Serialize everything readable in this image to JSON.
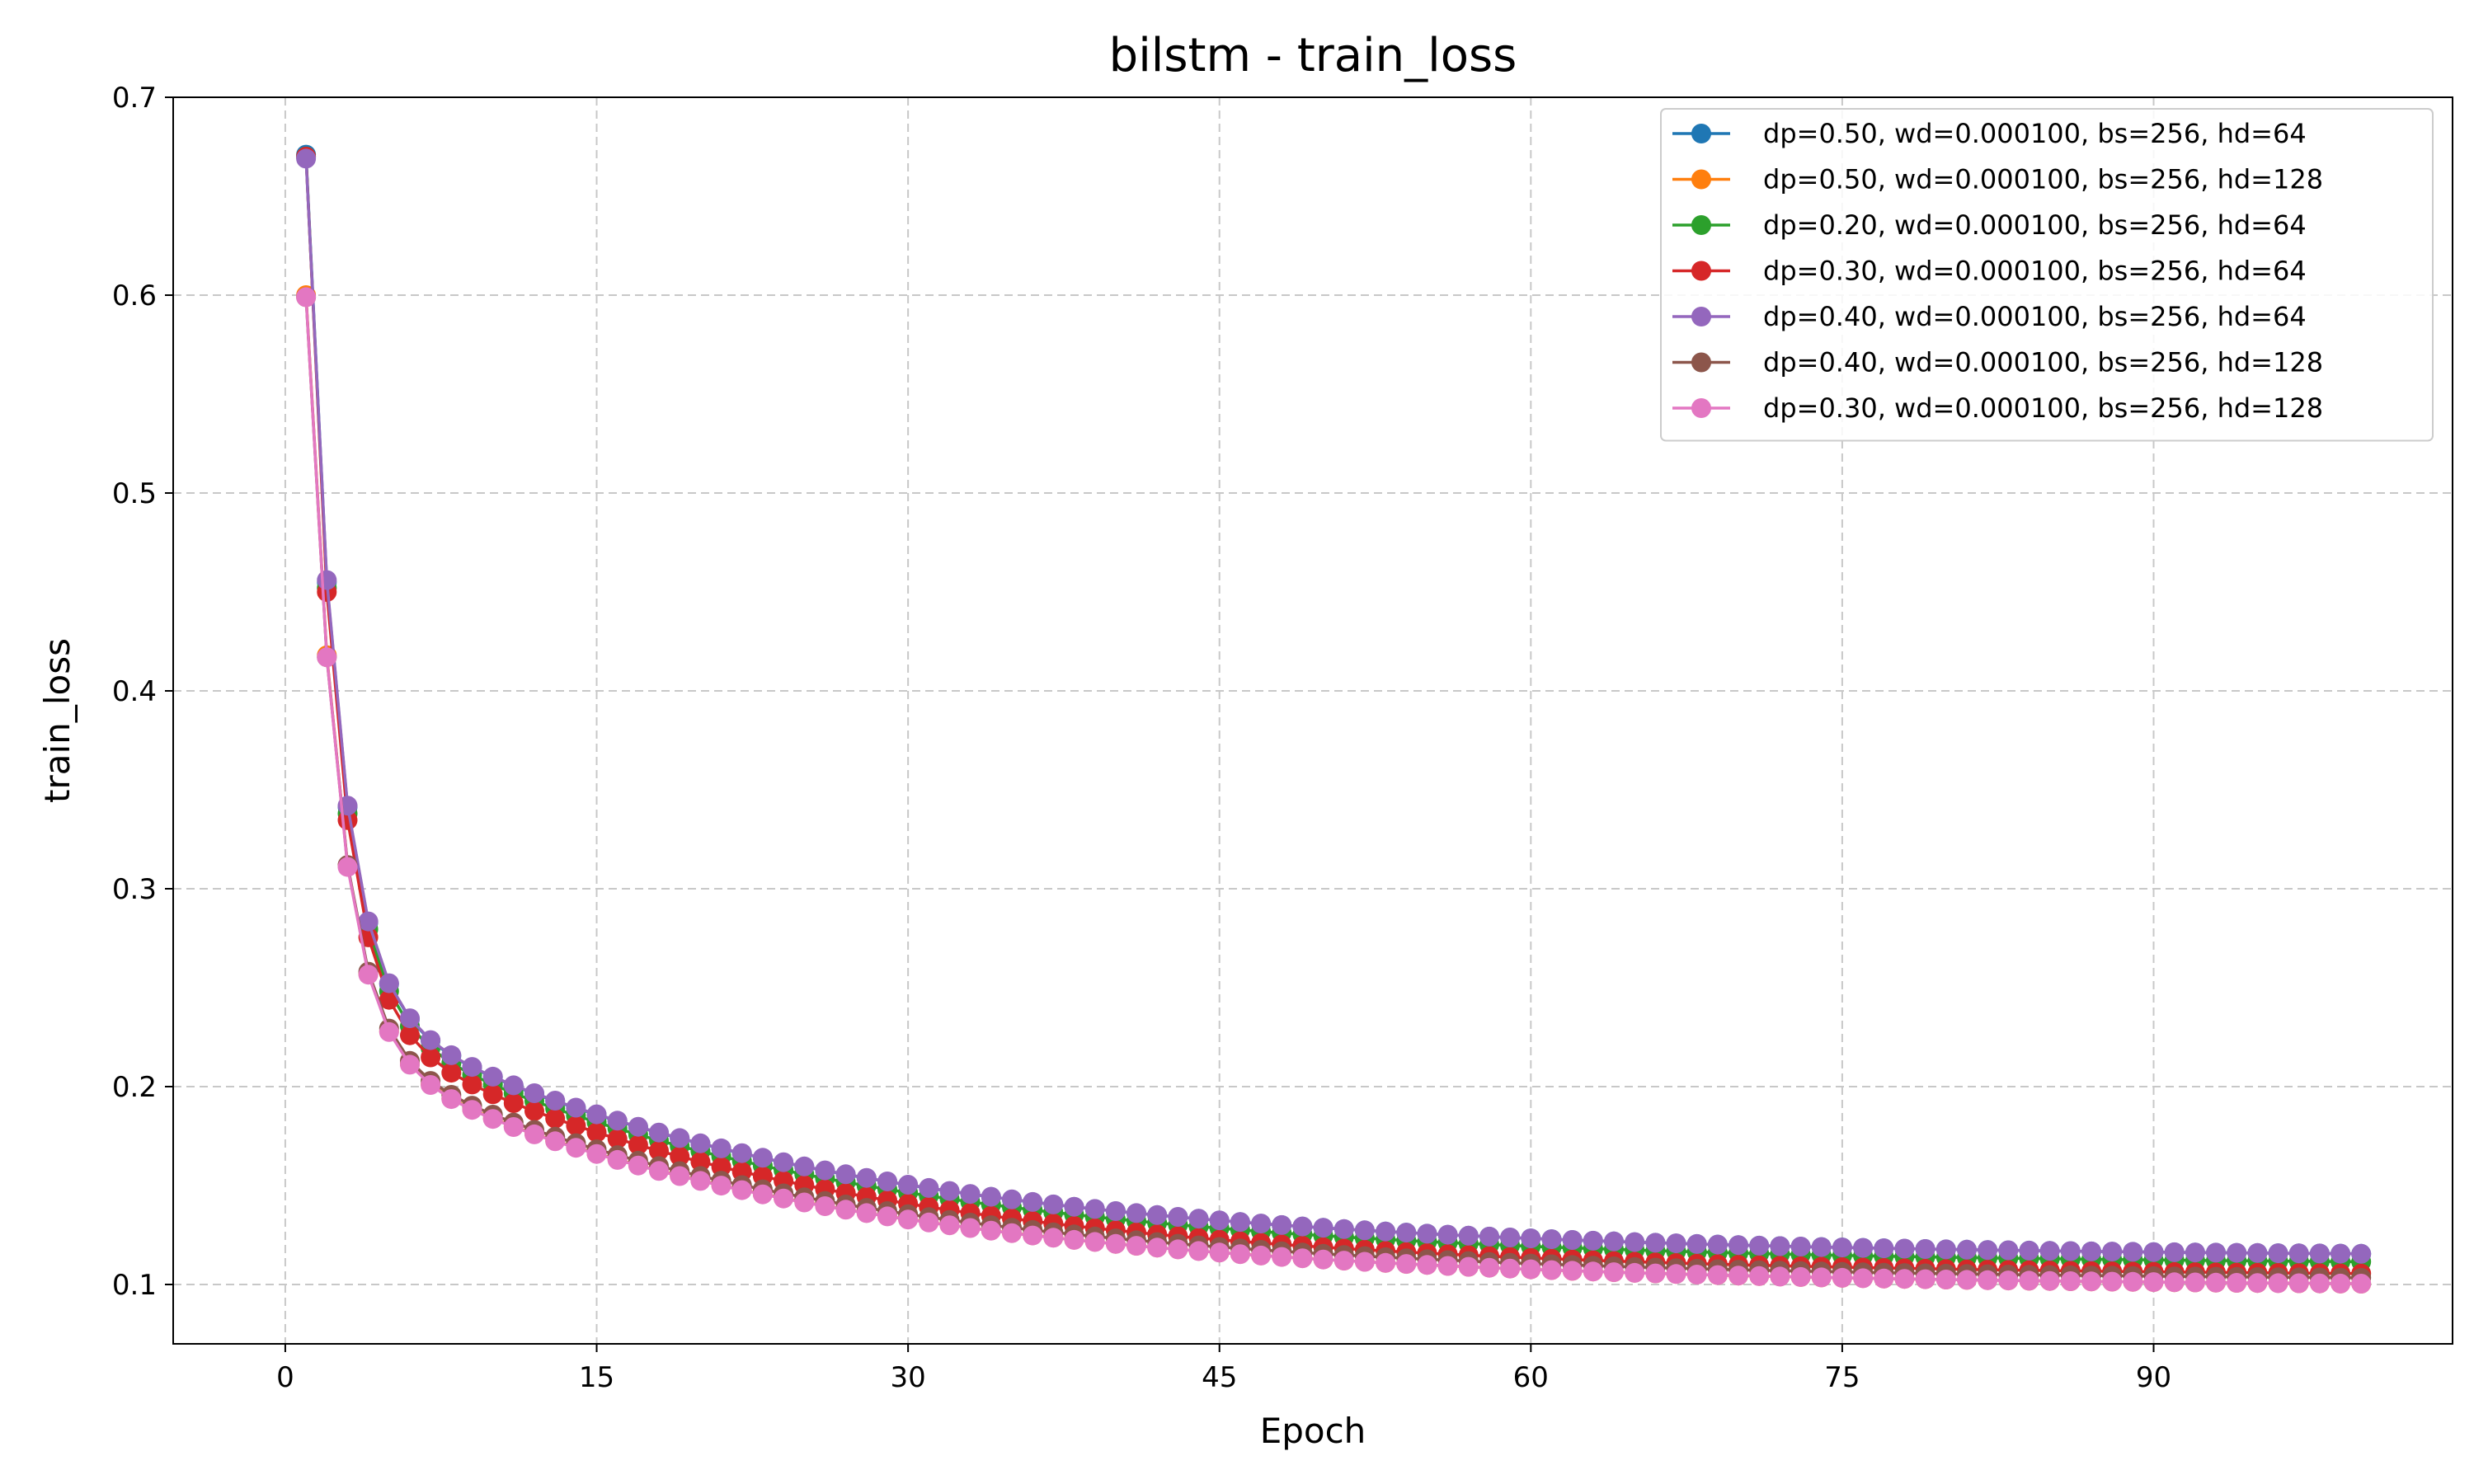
{
  "chart_data": {
    "type": "line",
    "title": "bilstm - train_loss",
    "xlabel": "Epoch",
    "ylabel": "train_loss",
    "xlim": [
      -5.4,
      104.4
    ],
    "ylim": [
      0.07,
      0.7
    ],
    "xticks": [
      0,
      15,
      30,
      45,
      60,
      75,
      90
    ],
    "yticks": [
      0.1,
      0.2,
      0.3,
      0.4,
      0.5,
      0.6,
      0.7
    ],
    "grid": true,
    "legend_position": "top-right",
    "series": [
      {
        "name": "dp=0.50, wd=0.000100, bs=256, hd=64",
        "color": "#1f77b4",
        "start": 0.671,
        "second": 0.455,
        "final": 0.114
      },
      {
        "name": "dp=0.50, wd=0.000100, bs=256, hd=128",
        "color": "#ff7f0e",
        "start": 0.6,
        "second": 0.418,
        "final": 0.099
      },
      {
        "name": "dp=0.20, wd=0.000100, bs=256, hd=64",
        "color": "#2ca02c",
        "start": 0.67,
        "second": 0.452,
        "final": 0.11
      },
      {
        "name": "dp=0.30, wd=0.000100, bs=256, hd=64",
        "color": "#d62728",
        "start": 0.67,
        "second": 0.45,
        "final": 0.104
      },
      {
        "name": "dp=0.40, wd=0.000100, bs=256, hd=64",
        "color": "#9467bd",
        "start": 0.669,
        "second": 0.456,
        "final": 0.114
      },
      {
        "name": "dp=0.40, wd=0.000100, bs=256, hd=128",
        "color": "#8c564b",
        "start": 0.599,
        "second": 0.417,
        "final": 0.102
      },
      {
        "name": "dp=0.30, wd=0.000100, bs=256, hd=128",
        "color": "#e377c2",
        "start": 0.599,
        "second": 0.417,
        "final": 0.099
      }
    ],
    "epochs": 100
  }
}
